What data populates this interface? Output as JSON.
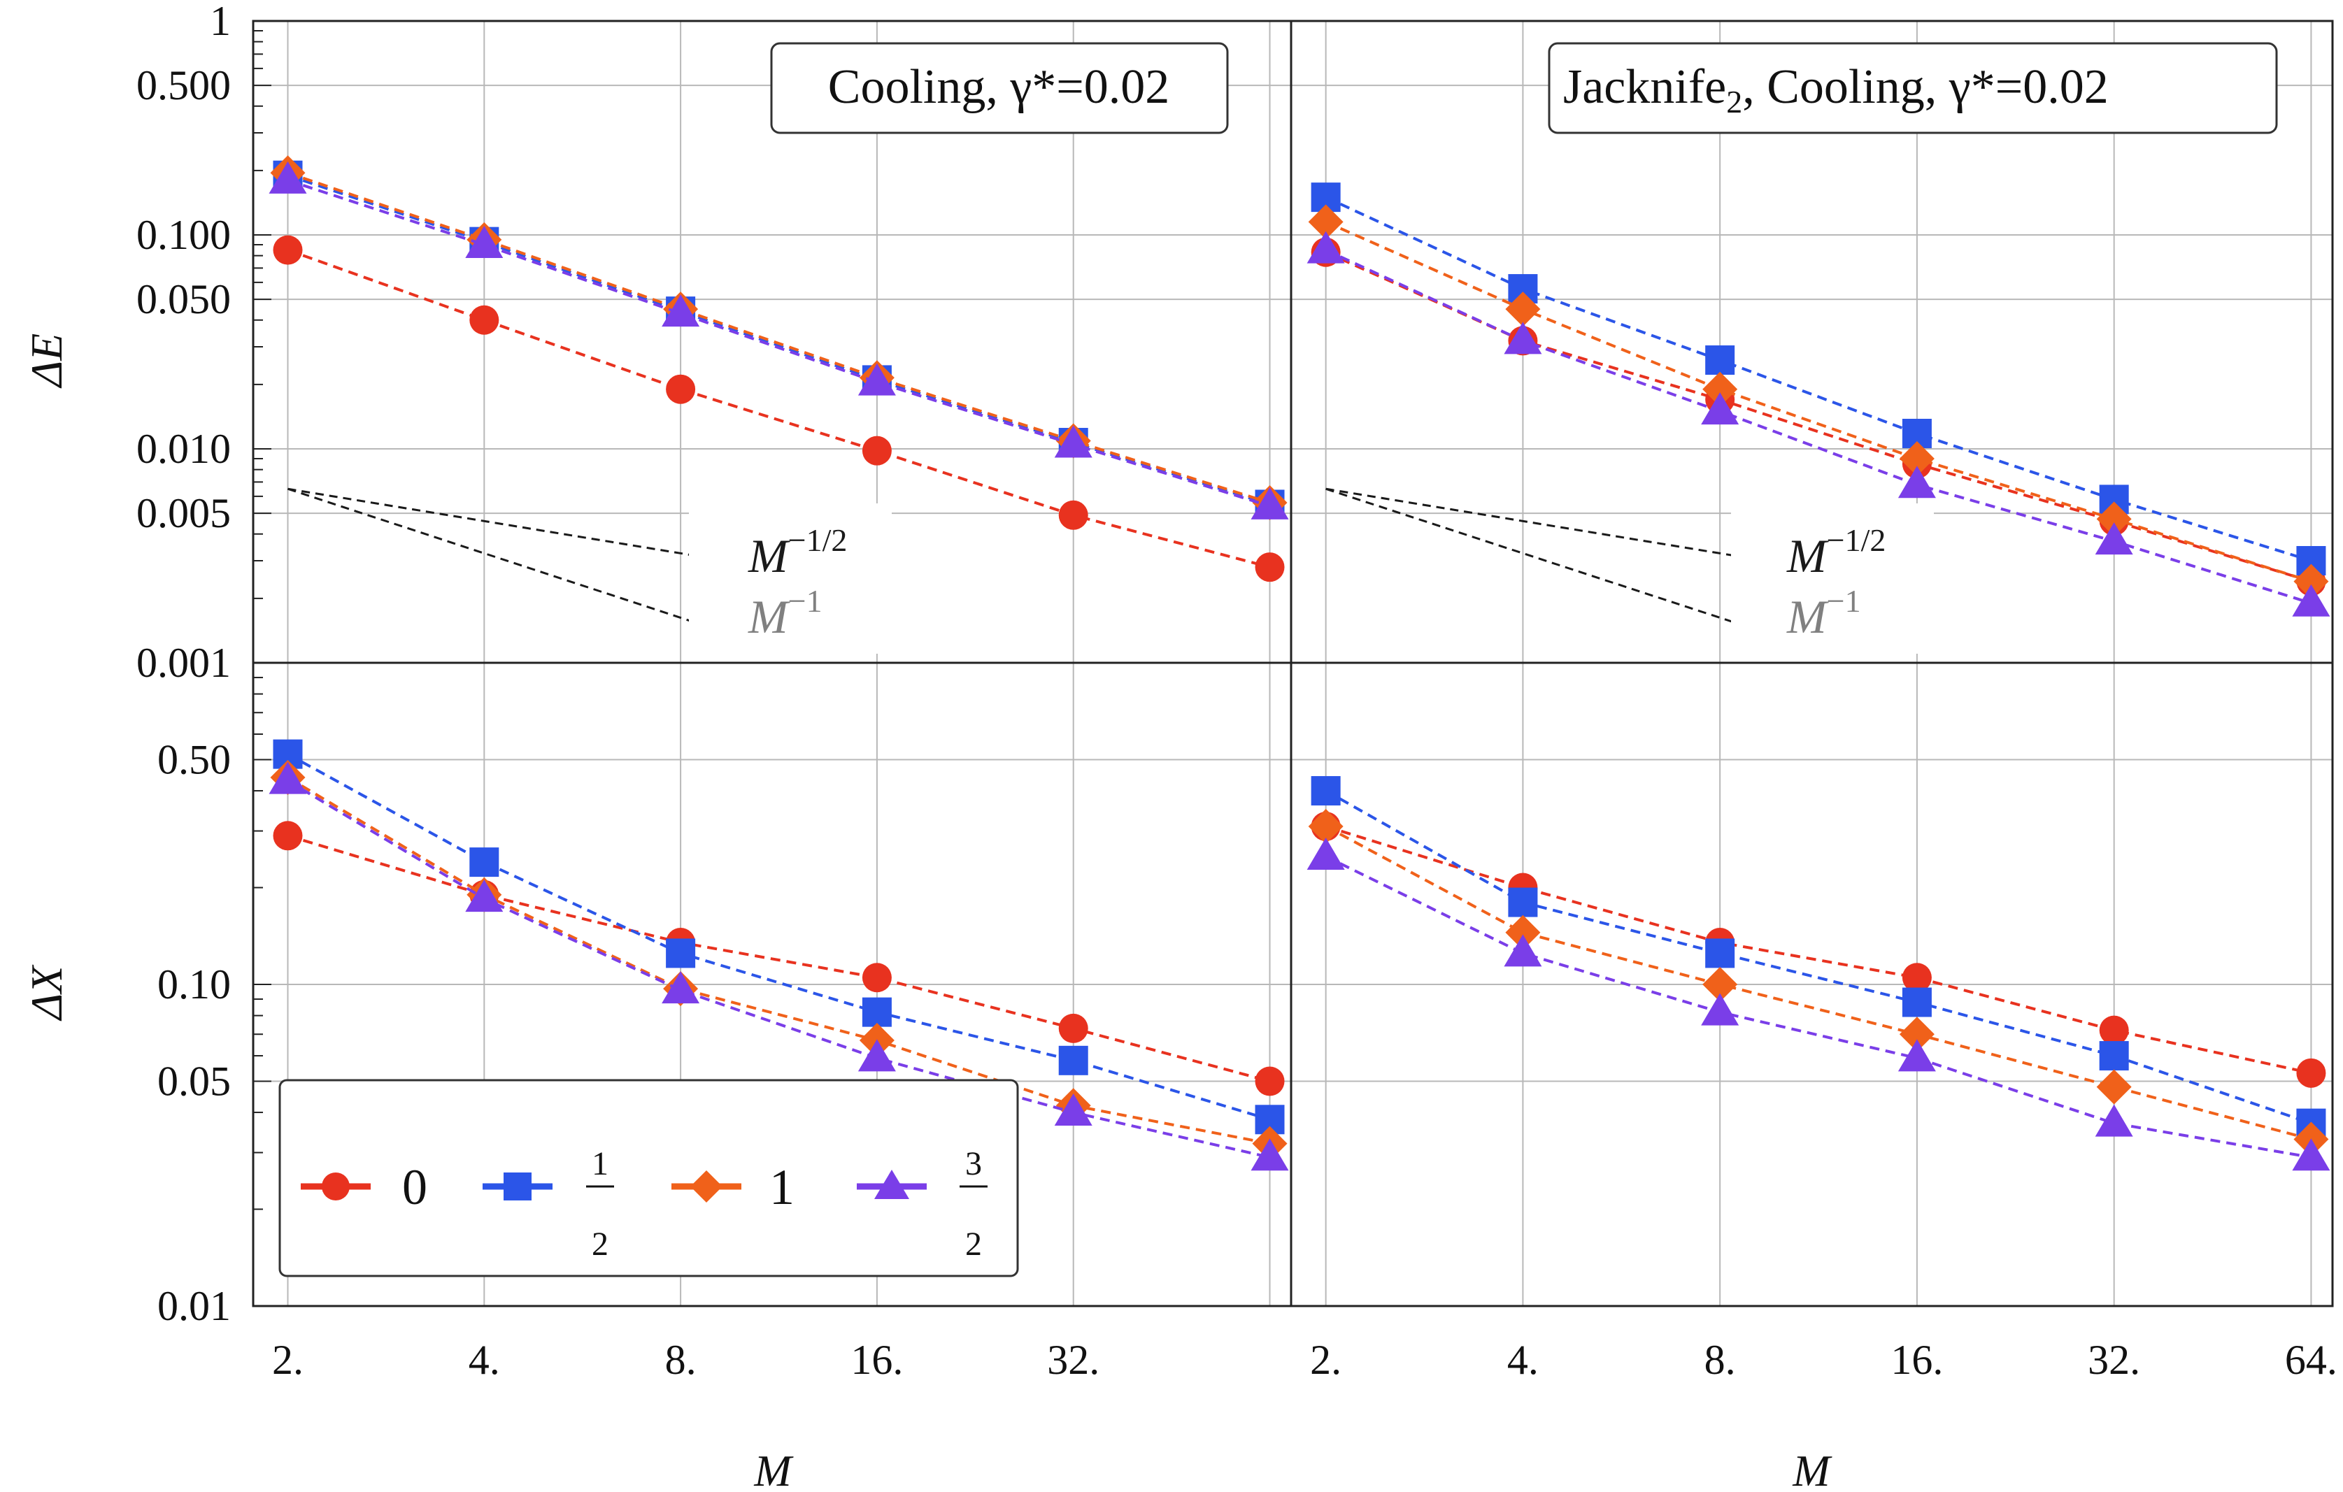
{
  "figure": {
    "x_axis_label": "M",
    "y_axis_label_top": "ΔE",
    "y_axis_label_bottom": "ΔX",
    "x_ticks": [
      2,
      4,
      8,
      16,
      32,
      64
    ],
    "x_tick_labels": [
      "2.",
      "4.",
      "8.",
      "16.",
      "32.",
      "64."
    ],
    "y_ticks_top": [
      0.001,
      0.005,
      0.01,
      0.05,
      0.1,
      0.5,
      1
    ],
    "y_tick_labels_top": [
      "0.001",
      "0.005",
      "0.010",
      "0.050",
      "0.100",
      "0.500",
      "1"
    ],
    "y_ticks_bottom": [
      0.01,
      0.05,
      0.1,
      0.5
    ],
    "y_tick_labels_bottom": [
      "0.01",
      "0.05",
      "0.10",
      "0.50"
    ]
  },
  "legend": {
    "items": [
      {
        "series": "0",
        "label": "0"
      },
      {
        "series": "1/2",
        "label_num": "1",
        "label_den": "2"
      },
      {
        "series": "1",
        "label": "1"
      },
      {
        "series": "3/2",
        "label_num": "3",
        "label_den": "2"
      }
    ]
  },
  "colors": {
    "s0": "#e8321f",
    "s_half": "#2b55e8",
    "s1": "#f0611a",
    "s_three_half": "#7a3ee8",
    "grid": "#b8b8b8",
    "guide_dark": "#1a1a1a",
    "guide_gray": "#808080"
  },
  "guides": {
    "label_1": "M",
    "label_1_exp": "−1/2",
    "label_2": "M",
    "label_2_exp": "−1"
  },
  "chart_data": [
    {
      "panel": "top-left",
      "type": "scatter-line",
      "title": "Cooling, γ*=0.02",
      "xscale": "log2",
      "yscale": "log",
      "xlim": [
        1.77,
        69
      ],
      "ylim": [
        0.001,
        1
      ],
      "ylabel": "ΔE",
      "xlabel": "M",
      "x": [
        2,
        4,
        8,
        16,
        32,
        64
      ],
      "series": [
        {
          "name": "0",
          "values": [
            0.085,
            0.04,
            0.019,
            0.0098,
            0.0049,
            0.0028
          ]
        },
        {
          "name": "1/2",
          "values": [
            0.19,
            0.093,
            0.044,
            0.021,
            0.0107,
            0.0055
          ]
        },
        {
          "name": "1",
          "values": [
            0.195,
            0.095,
            0.045,
            0.0215,
            0.0109,
            0.0056
          ]
        },
        {
          "name": "3/2",
          "values": [
            0.18,
            0.09,
            0.043,
            0.0205,
            0.0105,
            0.0054
          ]
        }
      ]
    },
    {
      "panel": "top-right",
      "type": "scatter-line",
      "title_main": "Jacknife",
      "title_sub": "2",
      "title_rest": ", Cooling, γ*=0.02",
      "xscale": "log2",
      "yscale": "log",
      "xlim": [
        1.77,
        69
      ],
      "ylim": [
        0.001,
        1
      ],
      "xlabel": "M",
      "x": [
        2,
        4,
        8,
        16,
        32,
        64
      ],
      "series": [
        {
          "name": "0",
          "values": [
            0.083,
            0.032,
            0.017,
            0.0085,
            0.0046,
            0.0024
          ]
        },
        {
          "name": "1/2",
          "values": [
            0.15,
            0.056,
            0.026,
            0.0118,
            0.0058,
            0.003
          ]
        },
        {
          "name": "1",
          "values": [
            0.115,
            0.045,
            0.019,
            0.009,
            0.0047,
            0.0024
          ]
        },
        {
          "name": "3/2",
          "values": [
            0.085,
            0.032,
            0.015,
            0.0068,
            0.0037,
            0.0019
          ]
        }
      ]
    },
    {
      "panel": "bottom-left",
      "type": "scatter-line",
      "xscale": "log2",
      "yscale": "log",
      "xlim": [
        1.77,
        69
      ],
      "ylim": [
        0.01,
        1
      ],
      "ylabel": "ΔX",
      "xlabel": "M",
      "x": [
        2,
        4,
        8,
        16,
        32,
        64
      ],
      "series": [
        {
          "name": "0",
          "values": [
            0.29,
            0.19,
            0.135,
            0.105,
            0.073,
            0.05
          ]
        },
        {
          "name": "1/2",
          "values": [
            0.52,
            0.24,
            0.125,
            0.082,
            0.058,
            0.038
          ]
        },
        {
          "name": "1",
          "values": [
            0.44,
            0.19,
            0.097,
            0.067,
            0.042,
            0.032
          ]
        },
        {
          "name": "3/2",
          "values": [
            0.43,
            0.185,
            0.096,
            0.059,
            0.04,
            0.029
          ]
        }
      ]
    },
    {
      "panel": "bottom-right",
      "type": "scatter-line",
      "xscale": "log2",
      "yscale": "log",
      "xlim": [
        1.77,
        69
      ],
      "ylim": [
        0.01,
        1
      ],
      "xlabel": "M",
      "x": [
        2,
        4,
        8,
        16,
        32,
        64
      ],
      "series": [
        {
          "name": "0",
          "values": [
            0.31,
            0.2,
            0.135,
            0.105,
            0.072,
            0.053
          ]
        },
        {
          "name": "1/2",
          "values": [
            0.4,
            0.18,
            0.125,
            0.088,
            0.06,
            0.037
          ]
        },
        {
          "name": "1",
          "values": [
            0.31,
            0.145,
            0.1,
            0.07,
            0.048,
            0.033
          ]
        },
        {
          "name": "3/2",
          "values": [
            0.25,
            0.125,
            0.082,
            0.059,
            0.037,
            0.029
          ]
        }
      ]
    }
  ]
}
